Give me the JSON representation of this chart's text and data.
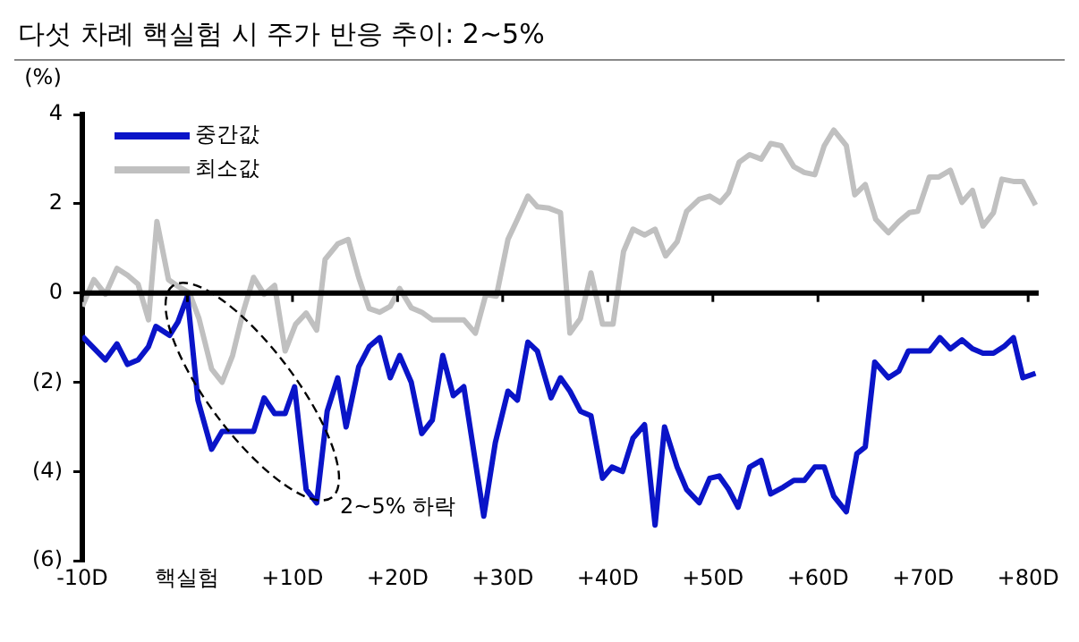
{
  "chart_data": {
    "type": "line",
    "title": "다섯 차례 핵실험 시 주가 반응 추이: 2~5%",
    "ylabel": "(%)",
    "xlim": [
      -10,
      81
    ],
    "xticks": [
      {
        "value": -10,
        "label": "-10D"
      },
      {
        "value": 0,
        "label": "핵실험"
      },
      {
        "value": 10,
        "label": "+10D"
      },
      {
        "value": 20,
        "label": "+20D"
      },
      {
        "value": 30,
        "label": "+30D"
      },
      {
        "value": 40,
        "label": "+40D"
      },
      {
        "value": 50,
        "label": "+50D"
      },
      {
        "value": 60,
        "label": "+60D"
      },
      {
        "value": 70,
        "label": "+70D"
      },
      {
        "value": 80,
        "label": "+80D"
      }
    ],
    "ylim": [
      -6,
      4
    ],
    "yticks": [
      {
        "value": 4,
        "label": "4"
      },
      {
        "value": 2,
        "label": "2"
      },
      {
        "value": 0,
        "label": "0"
      },
      {
        "value": -2,
        "label": "(2)"
      },
      {
        "value": -4,
        "label": "(4)"
      },
      {
        "value": -6,
        "label": "(6)"
      }
    ],
    "grid": false,
    "legend": "top left",
    "marker": "none",
    "line_style": "solid",
    "ref_lines": [
      {
        "axis": "y",
        "value": 0,
        "color": "#000000"
      }
    ],
    "annotations": [
      "2~5% 하락"
    ],
    "series": [
      {
        "name": "중간값",
        "color": "#0a14c8",
        "x": [
          -10,
          -7.8,
          -6.7,
          -5.7,
          -4.7,
          -3.7,
          -3,
          -1.7,
          -0.9,
          0,
          1,
          2.3,
          3.3,
          6.3,
          7.3,
          8.3,
          9.3,
          10.2,
          11.3,
          12.3,
          13.3,
          14.3,
          15.1,
          16.3,
          17.3,
          18.3,
          19.3,
          20.2,
          21.3,
          22.3,
          23.3,
          24.3,
          25.3,
          26.3,
          28.2,
          29.3,
          30.5,
          31.4,
          32.4,
          33.3,
          34.6,
          35.5,
          36.4,
          37.4,
          38.4,
          39.5,
          40.4,
          41.4,
          42.4,
          43.5,
          44.5,
          45.4,
          46.6,
          47.5,
          48.7,
          49.7,
          50.6,
          51.5,
          52.4,
          53.5,
          54.6,
          55.5,
          56.7,
          57.7,
          58.7,
          59.7,
          60.6,
          61.5,
          62.7,
          63.7,
          64.5,
          65.4,
          66.7,
          67.7,
          68.6,
          70.6,
          71.6,
          72.6,
          73.7,
          74.7,
          75.7,
          76.7,
          77.7,
          78.6,
          79.5,
          80.7
        ],
        "values": [
          -0.97,
          -1.5,
          -1.14,
          -1.6,
          -1.5,
          -1.2,
          -0.75,
          -0.95,
          -0.65,
          -0.07,
          -2.4,
          -3.5,
          -3.1,
          -3.1,
          -2.35,
          -2.7,
          -2.7,
          -2.1,
          -4.4,
          -4.7,
          -2.65,
          -1.9,
          -3,
          -1.65,
          -1.2,
          -1,
          -1.9,
          -1.4,
          -2,
          -3.15,
          -2.85,
          -1.4,
          -2.3,
          -2.1,
          -5,
          -3.35,
          -2.2,
          -2.4,
          -1.1,
          -1.3,
          -2.35,
          -1.9,
          -2.2,
          -2.65,
          -2.75,
          -4.15,
          -3.9,
          -4,
          -3.25,
          -2.95,
          -5.2,
          -3,
          -3.9,
          -4.4,
          -4.7,
          -4.15,
          -4.1,
          -4.4,
          -4.8,
          -3.9,
          -3.75,
          -4.5,
          -4.35,
          -4.2,
          -4.2,
          -3.9,
          -3.9,
          -4.55,
          -4.9,
          -3.6,
          -3.45,
          -1.55,
          -1.9,
          -1.75,
          -1.3,
          -1.3,
          -1,
          -1.25,
          -1.05,
          -1.25,
          -1.35,
          -1.35,
          -1.2,
          -1,
          -1.9,
          -1.8
        ]
      },
      {
        "name": "최소값",
        "color": "#c0c0c0",
        "x": [
          -10,
          -8.9,
          -7.8,
          -6.7,
          -5.7,
          -4.7,
          -3.7,
          -2.9,
          -1.8,
          -0.9,
          0.2,
          1.1,
          2.3,
          3.3,
          4.3,
          5.3,
          6.3,
          7.3,
          8.3,
          9.3,
          10.3,
          11.3,
          12.3,
          13.1,
          14.3,
          15.3,
          16.3,
          17.3,
          18.3,
          19.3,
          20.2,
          21.3,
          22.3,
          23.3,
          24.3,
          26.3,
          27.4,
          28.4,
          29.4,
          30.5,
          31.4,
          32.4,
          33.3,
          34.4,
          35.5,
          36.4,
          37.4,
          38.4,
          39.5,
          40.5,
          41.5,
          42.4,
          43.5,
          44.5,
          45.5,
          46.6,
          47.5,
          48.7,
          49.7,
          50.7,
          51.5,
          52.5,
          53.5,
          54.6,
          55.5,
          56.5,
          57.7,
          58.7,
          59.7,
          60.6,
          61.5,
          62.7,
          63.5,
          64.5,
          65.5,
          66.7,
          67.7,
          68.7,
          69.5,
          70.6,
          71.5,
          72.6,
          73.7,
          74.7,
          75.7,
          76.7,
          77.5,
          78.6,
          79.5,
          80.7
        ],
        "values": [
          -0.3,
          0.3,
          -0.03,
          0.55,
          0.4,
          0.2,
          -0.6,
          1.6,
          0.3,
          0.15,
          0,
          -0.57,
          -1.7,
          -2,
          -1.4,
          -0.43,
          0.35,
          -0.03,
          0.17,
          -1.3,
          -0.7,
          -0.45,
          -0.83,
          0.75,
          1.1,
          1.2,
          0.35,
          -0.35,
          -0.43,
          -0.3,
          0.1,
          -0.33,
          -0.43,
          -0.6,
          -0.6,
          -0.6,
          -0.9,
          -0.03,
          -0.07,
          1.2,
          1.65,
          2.17,
          1.93,
          1.9,
          1.8,
          -0.9,
          -0.57,
          0.45,
          -0.7,
          -0.7,
          0.93,
          1.43,
          1.3,
          1.43,
          0.83,
          1.15,
          1.83,
          2.1,
          2.17,
          2.03,
          2.25,
          2.93,
          3.1,
          3,
          3.35,
          3.3,
          2.83,
          2.7,
          2.65,
          3.3,
          3.65,
          3.3,
          2.2,
          2.43,
          1.65,
          1.35,
          1.6,
          1.8,
          1.83,
          2.6,
          2.6,
          2.75,
          2.03,
          2.3,
          1.5,
          1.8,
          2.55,
          2.5,
          2.5,
          1.97
        ]
      }
    ]
  }
}
